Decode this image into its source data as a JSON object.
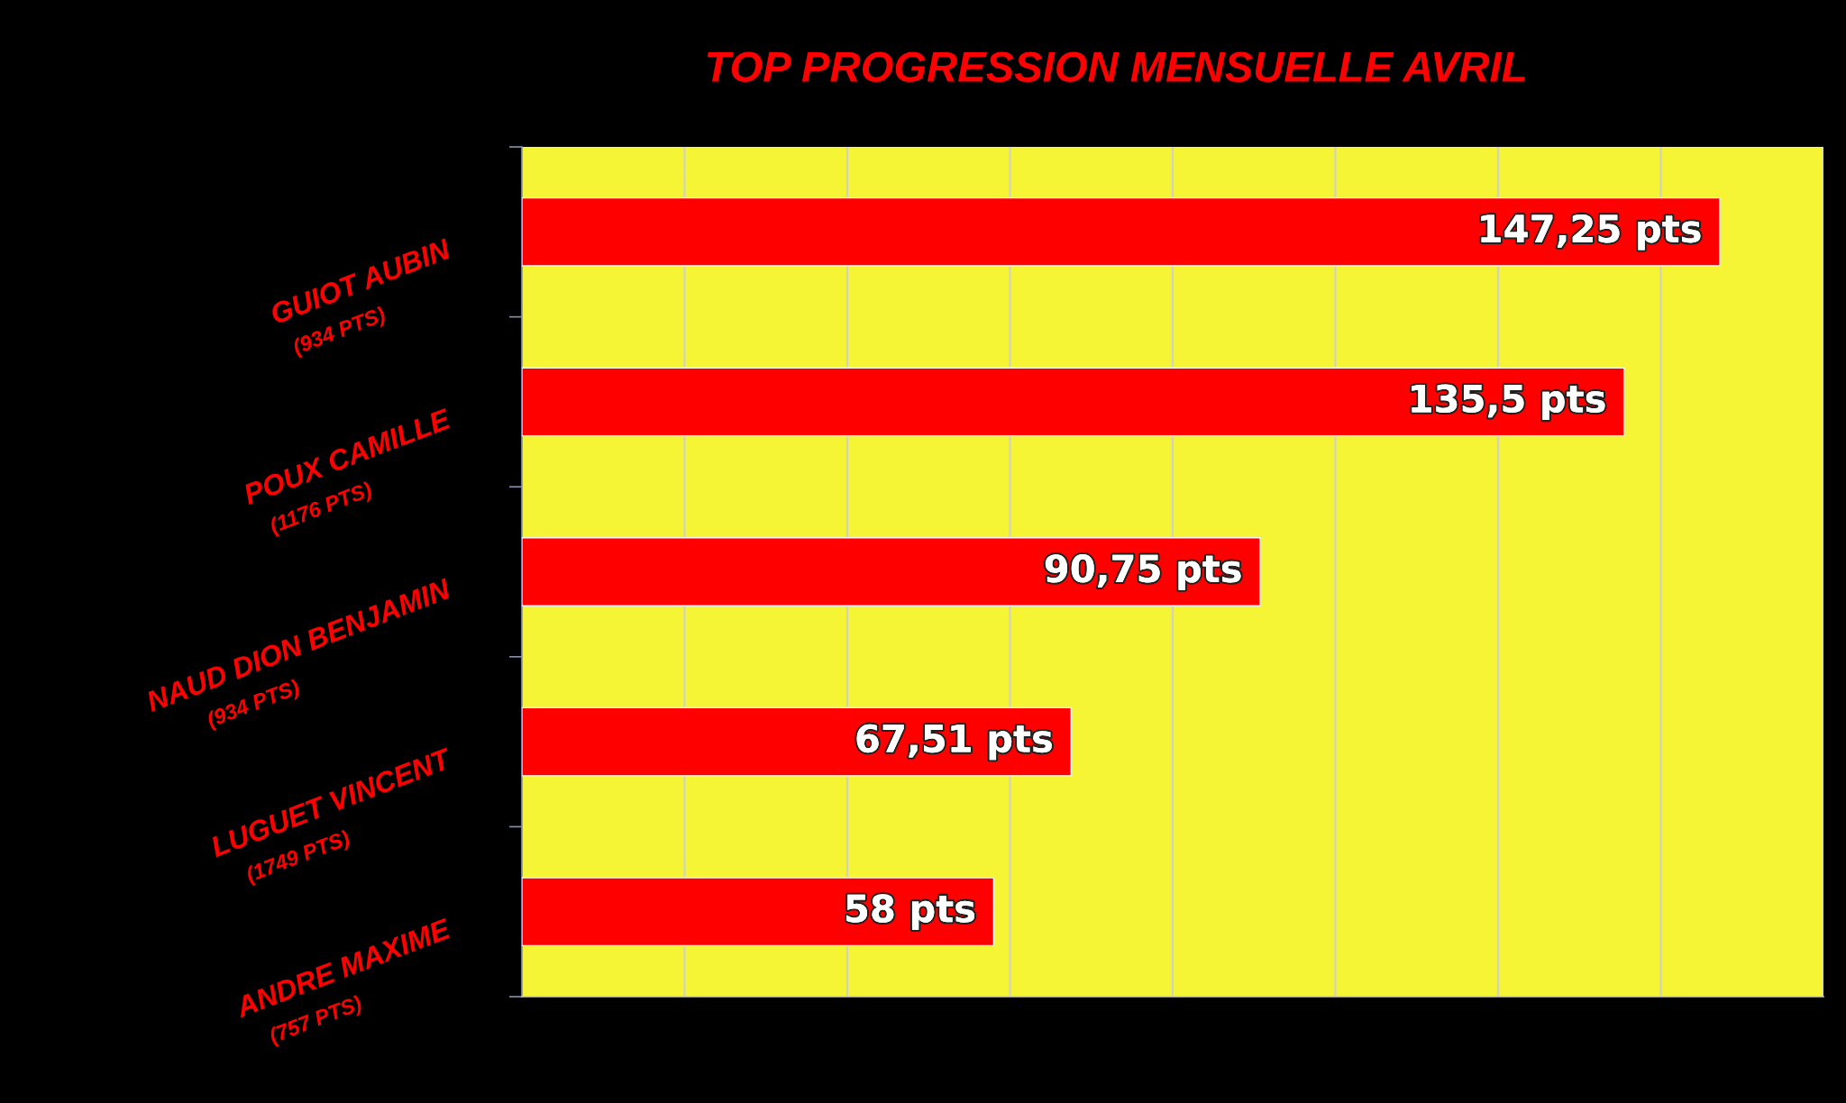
{
  "chart_data": {
    "type": "bar",
    "orientation": "horizontal",
    "title": "TOP PROGRESSION MENSUELLE AVRIL",
    "categories": [
      "GUIOT AUBIN\n(934 PTS)",
      "POUX CAMILLE\n(1176 PTS)",
      "NAUD DION BENJAMIN\n(934 PTS)",
      "LUGUET VINCENT\n(1749 PTS)",
      "ANDRE MAXIME\n(757 PTS)"
    ],
    "values": [
      147.25,
      135.5,
      90.75,
      67.51,
      58
    ],
    "value_labels": [
      "147,25 pts",
      "135,5 pts",
      "90,75 pts",
      "67,51 pts",
      "58 pts"
    ],
    "color": "#ff0000",
    "xlim": [
      0,
      160
    ],
    "xticks": [
      0,
      20,
      40,
      60,
      80,
      100,
      120,
      140,
      160
    ],
    "grid": "x",
    "tick_labels": "y"
  }
}
